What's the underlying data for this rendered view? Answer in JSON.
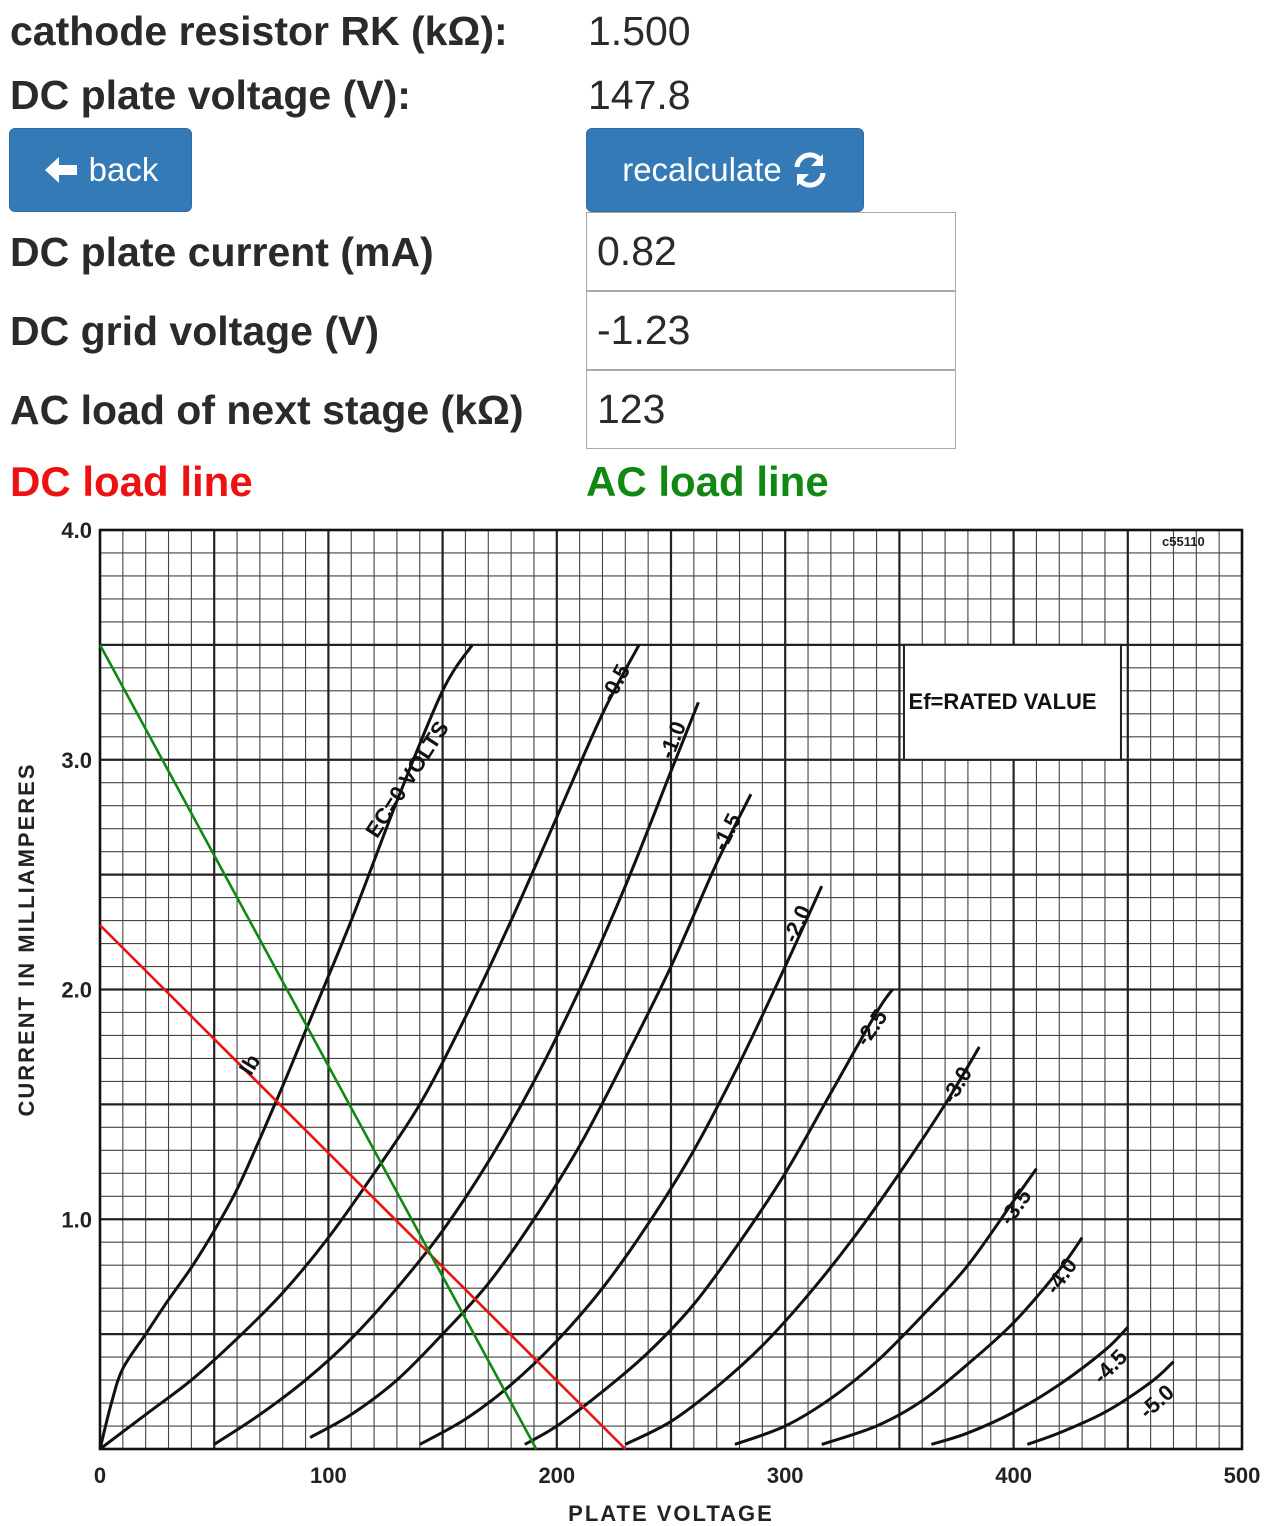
{
  "fields": {
    "cathode_label": "cathode resistor RK (kΩ):",
    "cathode_value": "1.500",
    "plate_voltage_label": "DC plate voltage (V):",
    "plate_voltage_value": "147.8",
    "plate_current_label": "DC plate current (mA)",
    "plate_current_value": "0.82",
    "grid_voltage_label": "DC grid voltage (V)",
    "grid_voltage_value": "-1.23",
    "ac_load_label": "AC load of next stage (kΩ)",
    "ac_load_value": "123"
  },
  "buttons": {
    "back_label": "back",
    "back_icon": "arrow-left-icon",
    "recalculate_label": "recalculate",
    "recalculate_icon": "refresh-icon",
    "color": "#337ab7"
  },
  "legend": {
    "dc_label": "DC load line",
    "dc_color": "#ee1111",
    "ac_label": "AC load line",
    "ac_color": "#118811"
  },
  "chart_data": {
    "type": "line",
    "xlabel": "PLATE VOLTAGE",
    "ylabel": "CURRENT IN MILLIAMPERES",
    "xlim": [
      0,
      500
    ],
    "ylim": [
      0,
      4.0
    ],
    "x_ticks": [
      "0",
      "100",
      "200",
      "300",
      "400",
      "500"
    ],
    "y_ticks": [
      "1.0",
      "2.0",
      "3.0",
      "4.0"
    ],
    "grid": true,
    "annotations": {
      "box": "Ef=RATED VALUE",
      "code": "c55110",
      "ib": "Ib"
    },
    "series": [
      {
        "name": "EC=0 VOLTS",
        "x": [
          0,
          5,
          10,
          20,
          30,
          40,
          50,
          60,
          70,
          80,
          90,
          110,
          130,
          150,
          163
        ],
        "y": [
          0,
          0.2,
          0.35,
          0.5,
          0.65,
          0.79,
          0.95,
          1.13,
          1.35,
          1.58,
          1.82,
          2.3,
          2.82,
          3.3,
          3.5
        ]
      },
      {
        "name": "-0.5",
        "x": [
          0,
          20,
          40,
          60,
          80,
          100,
          120,
          140,
          160,
          180,
          200,
          220,
          236
        ],
        "y": [
          0,
          0.15,
          0.3,
          0.48,
          0.68,
          0.92,
          1.2,
          1.5,
          1.88,
          2.3,
          2.75,
          3.2,
          3.5
        ]
      },
      {
        "name": "-1.0",
        "x": [
          50,
          70,
          90,
          110,
          130,
          150,
          170,
          190,
          210,
          230,
          250,
          262
        ],
        "y": [
          0.02,
          0.15,
          0.3,
          0.48,
          0.7,
          0.95,
          1.25,
          1.6,
          2.0,
          2.45,
          2.95,
          3.25
        ]
      },
      {
        "name": "-1.5",
        "x": [
          92,
          110,
          130,
          150,
          170,
          190,
          210,
          230,
          250,
          270,
          285
        ],
        "y": [
          0.05,
          0.15,
          0.3,
          0.5,
          0.72,
          1.0,
          1.32,
          1.7,
          2.1,
          2.55,
          2.85
        ]
      },
      {
        "name": "-2.0",
        "x": [
          140,
          160,
          180,
          200,
          220,
          240,
          260,
          280,
          300,
          316
        ],
        "y": [
          0.02,
          0.13,
          0.28,
          0.47,
          0.7,
          0.98,
          1.3,
          1.68,
          2.1,
          2.45
        ]
      },
      {
        "name": "-2.5",
        "x": [
          186,
          200,
          220,
          240,
          260,
          280,
          300,
          320,
          340,
          347
        ],
        "y": [
          0.02,
          0.1,
          0.25,
          0.42,
          0.63,
          0.9,
          1.2,
          1.55,
          1.9,
          2.0
        ]
      },
      {
        "name": "-3.0",
        "x": [
          230,
          250,
          270,
          290,
          310,
          330,
          350,
          370,
          385
        ],
        "y": [
          0.02,
          0.12,
          0.27,
          0.45,
          0.67,
          0.92,
          1.2,
          1.5,
          1.75
        ]
      },
      {
        "name": "-3.5",
        "x": [
          278,
          300,
          320,
          340,
          360,
          380,
          400,
          410
        ],
        "y": [
          0.02,
          0.1,
          0.22,
          0.38,
          0.58,
          0.8,
          1.08,
          1.22
        ]
      },
      {
        "name": "-4.0",
        "x": [
          316,
          340,
          360,
          380,
          400,
          420,
          430
        ],
        "y": [
          0.02,
          0.1,
          0.21,
          0.37,
          0.55,
          0.78,
          0.92
        ]
      },
      {
        "name": "-4.5",
        "x": [
          364,
          380,
          400,
          420,
          440,
          450
        ],
        "y": [
          0.02,
          0.07,
          0.16,
          0.28,
          0.43,
          0.53
        ]
      },
      {
        "name": "-5.0",
        "x": [
          406,
          420,
          440,
          460,
          470
        ],
        "y": [
          0.02,
          0.07,
          0.16,
          0.29,
          0.38
        ]
      },
      {
        "name": "DC load line",
        "x": [
          0,
          230
        ],
        "y": [
          2.28,
          0
        ]
      },
      {
        "name": "AC load line",
        "x": [
          0,
          191
        ],
        "y": [
          3.5,
          0
        ]
      }
    ]
  }
}
